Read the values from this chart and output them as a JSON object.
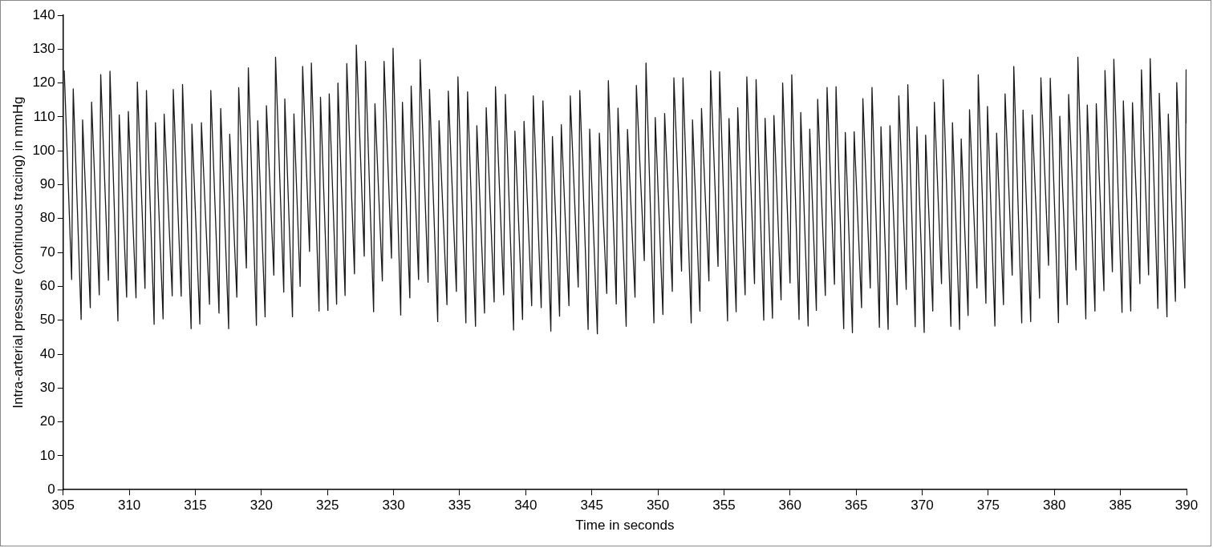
{
  "chart_data": {
    "type": "line",
    "xlabel": "Time in seconds",
    "ylabel": "Intra-arterial pressure (continuous tracing) in mmHg",
    "xlim": [
      305,
      390
    ],
    "xticks": [
      305,
      310,
      315,
      320,
      325,
      330,
      335,
      340,
      345,
      350,
      355,
      360,
      365,
      370,
      375,
      380,
      385,
      390
    ],
    "ylim": [
      0,
      140
    ],
    "yticks": [
      0,
      10,
      20,
      30,
      40,
      50,
      60,
      70,
      80,
      90,
      100,
      110,
      120,
      130,
      140
    ],
    "grid": false,
    "legend": false,
    "marker": "none",
    "line_style": "solid",
    "series": [
      {
        "color": "#1a1a1a",
        "x": [
          305.08,
          305.64,
          305.76,
          306.36,
          306.47,
          307.05,
          307.15,
          307.73,
          307.84,
          308.42,
          308.54,
          309.14,
          309.24,
          309.8,
          309.93,
          310.51,
          310.61,
          311.19,
          311.3,
          311.88,
          311.98,
          312.56,
          312.64,
          313.25,
          313.33,
          313.93,
          314.03,
          314.68,
          314.74,
          315.34,
          315.46,
          316.07,
          316.17,
          316.79,
          316.92,
          317.52,
          317.6,
          318.14,
          318.28,
          318.86,
          319.01,
          319.62,
          319.72,
          320.28,
          320.38,
          320.94,
          321.07,
          321.69,
          321.77,
          322.35,
          322.46,
          322.93,
          323.12,
          323.64,
          323.78,
          324.36,
          324.47,
          325.03,
          325.13,
          325.69,
          325.79,
          326.33,
          326.46,
          327.04,
          327.18,
          327.78,
          327.87,
          328.49,
          328.59,
          329.15,
          329.28,
          329.84,
          329.96,
          330.54,
          330.67,
          331.23,
          331.33,
          331.89,
          332.01,
          332.61,
          332.72,
          333.34,
          333.44,
          334.04,
          334.14,
          334.75,
          334.87,
          335.47,
          335.6,
          336.2,
          336.3,
          336.88,
          337.01,
          337.61,
          337.71,
          338.33,
          338.46,
          339.08,
          339.18,
          339.76,
          339.87,
          340.45,
          340.57,
          341.17,
          341.3,
          341.9,
          342.02,
          342.56,
          342.69,
          343.27,
          343.37,
          343.97,
          344.09,
          344.72,
          344.84,
          345.42,
          345.57,
          346.13,
          346.25,
          346.85,
          346.98,
          347.6,
          347.7,
          348.27,
          348.37,
          348.97,
          349.1,
          349.7,
          349.8,
          350.38,
          350.51,
          351.09,
          351.21,
          351.79,
          351.9,
          352.52,
          352.62,
          353.18,
          353.3,
          353.86,
          353.99,
          354.55,
          354.67,
          355.27,
          355.38,
          355.92,
          356.04,
          356.6,
          356.73,
          357.31,
          357.43,
          358.01,
          358.11,
          358.67,
          358.78,
          359.32,
          359.44,
          360.0,
          360.13,
          360.68,
          360.81,
          361.37,
          361.49,
          361.99,
          362.09,
          362.67,
          362.8,
          363.36,
          363.48,
          364.06,
          364.18,
          364.72,
          364.85,
          365.41,
          365.51,
          366.07,
          366.2,
          366.76,
          366.88,
          367.42,
          367.56,
          368.1,
          368.23,
          368.79,
          368.91,
          369.47,
          369.6,
          370.15,
          370.26,
          370.8,
          370.92,
          371.46,
          371.59,
          372.17,
          372.29,
          372.83,
          372.95,
          373.47,
          373.58,
          374.14,
          374.24,
          374.82,
          374.94,
          375.5,
          375.63,
          376.15,
          376.27,
          376.81,
          376.93,
          377.53,
          377.63,
          378.21,
          378.32,
          378.88,
          378.98,
          379.56,
          379.69,
          380.31,
          380.41,
          380.97,
          381.08,
          381.64,
          381.78,
          382.38,
          382.49,
          383.07,
          383.17,
          383.75,
          383.83,
          384.39,
          384.5,
          385.12,
          385.22,
          385.78,
          385.91,
          386.47,
          386.59,
          387.13,
          387.25,
          387.83,
          387.94,
          388.52,
          388.62,
          389.16,
          389.26,
          389.87,
          389.97,
          390.0
        ],
        "values": [
          123.7,
          62.0,
          118.3,
          50.2,
          109.1,
          53.7,
          114.4,
          57.5,
          122.5,
          61.8,
          123.5,
          49.8,
          110.6,
          56.8,
          111.6,
          56.6,
          120.3,
          59.4,
          117.8,
          48.8,
          108.3,
          50.4,
          110.8,
          57.2,
          118.1,
          57.1,
          119.6,
          47.5,
          107.9,
          48.9,
          108.3,
          54.7,
          117.8,
          52.1,
          112.5,
          47.5,
          104.9,
          56.8,
          118.6,
          65.4,
          124.5,
          48.5,
          108.9,
          51.0,
          113.3,
          63.3,
          127.6,
          58.3,
          115.3,
          51.0,
          110.9,
          60.0,
          124.9,
          70.3,
          125.9,
          52.7,
          115.8,
          52.9,
          116.8,
          54.7,
          120.0,
          57.3,
          125.7,
          63.7,
          131.2,
          68.9,
          126.4,
          52.5,
          113.9,
          61.6,
          126.4,
          68.3,
          130.3,
          51.5,
          114.3,
          56.6,
          119.1,
          62.0,
          126.9,
          61.2,
          118.1,
          49.6,
          108.9,
          54.6,
          117.6,
          58.5,
          121.8,
          49.2,
          117.4,
          48.2,
          107.4,
          52.1,
          112.7,
          55.4,
          118.9,
          57.5,
          116.6,
          47.1,
          105.8,
          50.2,
          108.7,
          54.3,
          116.2,
          53.7,
          114.7,
          46.8,
          104.2,
          51.2,
          107.7,
          54.3,
          116.2,
          59.8,
          117.8,
          47.3,
          106.4,
          46.0,
          105.2,
          57.9,
          120.7,
          54.8,
          112.6,
          48.2,
          106.3,
          56.8,
          119.3,
          67.6,
          125.9,
          49.2,
          109.8,
          51.7,
          111.0,
          58.5,
          121.5,
          64.5,
          121.5,
          49.2,
          109.1,
          52.7,
          112.5,
          61.6,
          123.6,
          65.9,
          123.3,
          49.8,
          109.5,
          52.5,
          112.7,
          57.5,
          121.8,
          60.8,
          121.0,
          50.0,
          109.6,
          50.6,
          110.4,
          56.0,
          120.0,
          61.0,
          122.4,
          50.2,
          111.3,
          48.3,
          106.4,
          52.9,
          115.2,
          57.3,
          118.7,
          60.6,
          118.9,
          47.5,
          105.4,
          46.3,
          105.6,
          53.7,
          115.4,
          59.5,
          118.7,
          47.9,
          107.1,
          47.3,
          107.4,
          54.6,
          116.2,
          59.1,
          119.5,
          48.1,
          107.1,
          46.4,
          104.6,
          52.7,
          114.3,
          60.8,
          121.0,
          48.2,
          108.3,
          47.3,
          103.5,
          51.4,
          112.1,
          59.5,
          122.4,
          55.0,
          113.1,
          48.3,
          105.2,
          54.6,
          116.8,
          63.3,
          124.9,
          49.2,
          112.0,
          49.6,
          110.6,
          56.5,
          121.5,
          66.2,
          121.4,
          49.3,
          110.2,
          54.6,
          116.6,
          64.8,
          127.6,
          50.4,
          113.5,
          52.7,
          113.9,
          58.7,
          123.7,
          64.3,
          127.0,
          52.3,
          114.7,
          52.7,
          114.2,
          60.8,
          123.9,
          63.4,
          127.2,
          53.5,
          117.0,
          51.0,
          110.8,
          55.6,
          120.1,
          59.5,
          123.9,
          108.1
        ]
      }
    ]
  }
}
